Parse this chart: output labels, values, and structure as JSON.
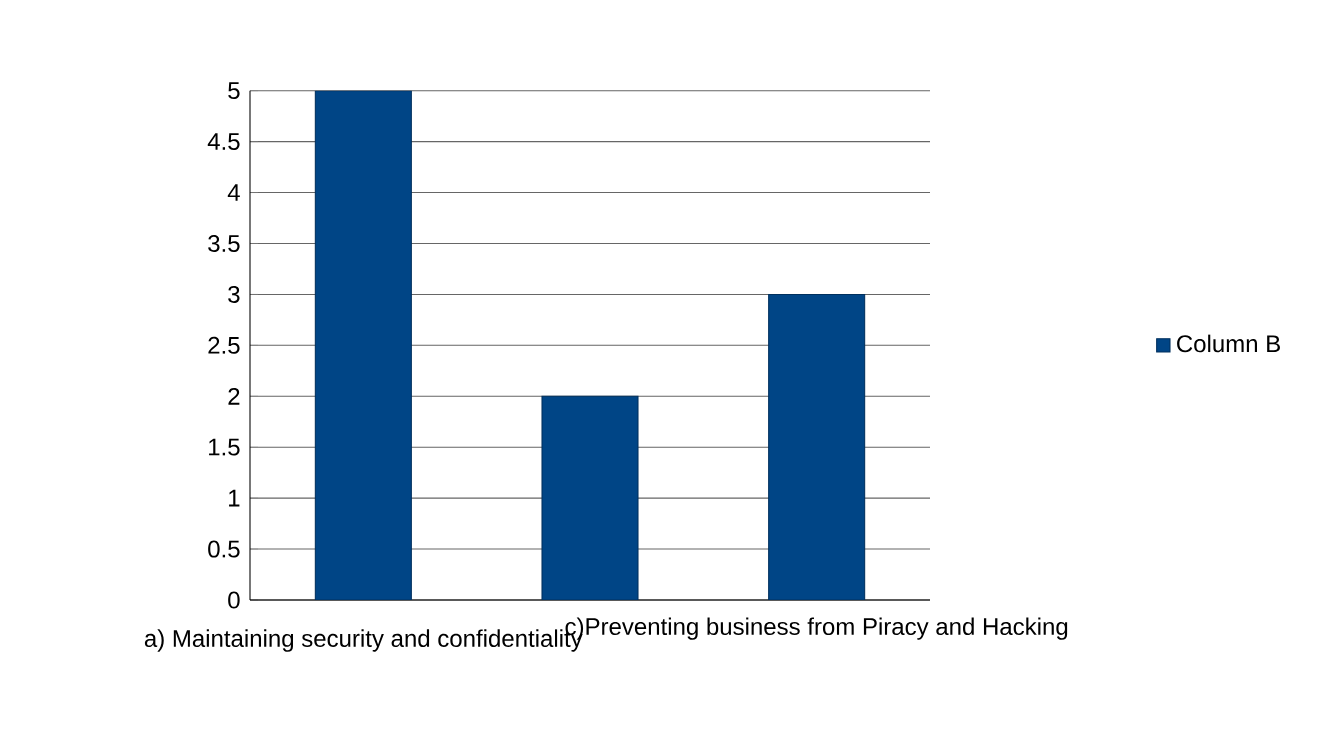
{
  "chart_data": {
    "type": "bar",
    "categories": [
      "a) Maintaining security and confidentiality",
      null,
      "c)Preventing business from Piracy and Hacking"
    ],
    "series": [
      {
        "name": "Column B",
        "color": "#004586",
        "values": [
          5,
          2,
          3
        ]
      }
    ],
    "ylim": [
      0,
      5
    ],
    "yticks": [
      0,
      0.5,
      1,
      1.5,
      2,
      2.5,
      3,
      3.5,
      4,
      4.5,
      5
    ],
    "grid": "y",
    "legend": "right"
  }
}
